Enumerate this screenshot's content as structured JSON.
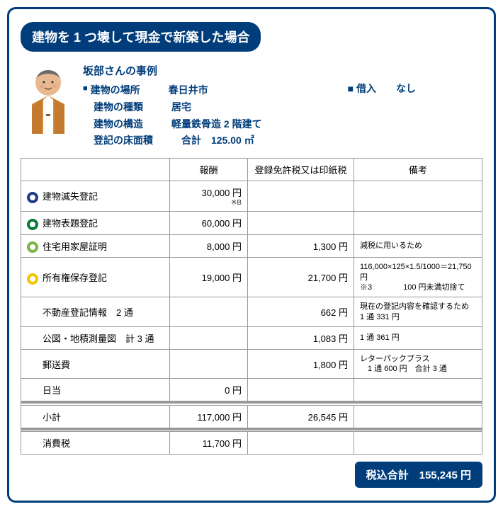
{
  "title": "建物を 1 つ壊して現金で新築した場合",
  "case": {
    "name": "坂部さんの事例",
    "rows": [
      {
        "marker": "■",
        "label": "建物の場所",
        "value": "春日井市"
      },
      {
        "marker": "",
        "label": "建物の種類",
        "value": "居宅"
      },
      {
        "marker": "",
        "label": "建物の構造",
        "value": "軽量鉄骨造 2 階建て"
      },
      {
        "marker": "",
        "label": "登記の床面積",
        "value": "　合計　125.00 ㎡"
      }
    ],
    "loan_label": "■ 借入",
    "loan_value": "なし"
  },
  "headers": {
    "item": "",
    "fee": "報酬",
    "tax": "登録免許税又は印紙税",
    "remarks": "備考"
  },
  "rows": [
    {
      "circle": "c-blue",
      "item": "建物滅失登記",
      "fee": "30,000 円",
      "fee_note": "※B",
      "tax": "",
      "remarks": ""
    },
    {
      "circle": "c-dgreen",
      "item": "建物表題登記",
      "fee": "60,000 円",
      "tax": "",
      "remarks": ""
    },
    {
      "circle": "c-green",
      "item": "住宅用家屋証明",
      "fee": "8,000 円",
      "tax": "1,300 円",
      "remarks": "減税に用いるため"
    },
    {
      "circle": "c-yellow",
      "item": "所有権保存登記",
      "fee": "19,000 円",
      "tax": "21,700 円",
      "remarks": "116,000×125×1.5/1000＝21,750 円\n※3　　　　100 円未満切捨て"
    },
    {
      "indent": true,
      "item": "不動産登記情報　2 通",
      "fee": "",
      "tax": "662 円",
      "remarks": "現在の登記内容を確認するため\n1 通 331 円"
    },
    {
      "indent": true,
      "item": "公図・地積測量図　計 3 通",
      "fee": "",
      "tax": "1,083 円",
      "remarks": "1 通 361 円"
    },
    {
      "indent": true,
      "item": "郵送費",
      "fee": "",
      "tax": "1,800 円",
      "remarks": "レターパックプラス\n　1 通 600 円　合計 3 通"
    },
    {
      "indent": true,
      "item": "日当",
      "fee": "0 円",
      "tax": "",
      "remarks": ""
    }
  ],
  "subtotal": {
    "label": "小計",
    "fee": "117,000 円",
    "tax": "26,545 円"
  },
  "consumption_tax": {
    "label": "消費税",
    "fee": "11,700 円"
  },
  "total": {
    "label": "税込合計",
    "value": "155,245 円"
  },
  "avatar": {
    "face": "#e8b890",
    "hair": "#6b6b6b",
    "jacket": "#d88a3a",
    "shirt": "#fff"
  }
}
